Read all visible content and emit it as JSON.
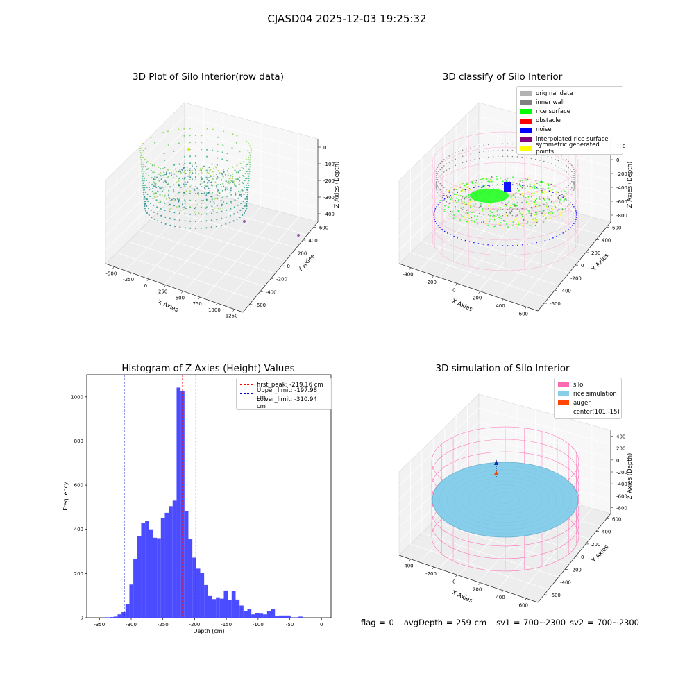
{
  "suptitle": "CJASD04 2025-12-03 19:25:32",
  "panels": {
    "raw": {
      "title": "3D Plot of Silo Interior(row data)",
      "x_label": "X Axies",
      "y_label": "Y Axies",
      "z_label": "Z Axies (Depth)",
      "x_ticks": [
        "-500",
        "-250",
        "0",
        "250",
        "500",
        "750",
        "1000",
        "1250"
      ],
      "y_ticks": [
        "600",
        "400",
        "200",
        "0",
        "-200",
        "-400",
        "-600"
      ],
      "z_ticks": [
        "0",
        "-100",
        "-200",
        "-300",
        "-400"
      ]
    },
    "classify": {
      "title": "3D classify of Silo Interior",
      "x_label": "X Axies",
      "y_label": "Y Axies",
      "z_label": "Z Axies (Depth)",
      "x_ticks": [
        "-400",
        "-200",
        "0",
        "200",
        "400",
        "600"
      ],
      "y_ticks": [
        "600",
        "400",
        "200",
        "0",
        "-200",
        "-400",
        "-600"
      ],
      "z_ticks": [
        "200",
        "0",
        "-200",
        "-400",
        "-600",
        "-800"
      ],
      "legend": [
        {
          "label": "original data",
          "color": "#b3b3b3"
        },
        {
          "label": "inner wall",
          "color": "#808080"
        },
        {
          "label": "rice surface",
          "color": "#00ff00"
        },
        {
          "label": "obstacle",
          "color": "#ff0000"
        },
        {
          "label": "noise",
          "color": "#0000ff"
        },
        {
          "label": "interpolated rice surface",
          "color": "#800080"
        },
        {
          "label": "symmetric generated points",
          "color": "#ffff00"
        }
      ]
    },
    "simulation": {
      "title": "3D simulation of Silo Interior",
      "x_label": "X Axies",
      "y_label": "Y Axies",
      "z_label": "Z Axies (Depth)",
      "x_ticks": [
        "-400",
        "-200",
        "0",
        "200",
        "400",
        "600"
      ],
      "y_ticks": [
        "600",
        "400",
        "200",
        "0",
        "-200",
        "-400",
        "-600"
      ],
      "z_ticks": [
        "400",
        "200",
        "0",
        "-200",
        "-400",
        "-600",
        "-800"
      ],
      "legend": [
        {
          "label": "silo",
          "color": "#ff69b4"
        },
        {
          "label": "rice simulation",
          "color": "#87ceeb"
        },
        {
          "label": "auger",
          "color": "#ff4500"
        },
        {
          "label": "center(101,-15)",
          "color": ""
        }
      ]
    }
  },
  "chart_data": {
    "type": "bar",
    "title": "Histogram of Z-Axies (Height) Values",
    "xlabel": "Depth (cm)",
    "ylabel": "Frequency",
    "xlim": [
      -370,
      15
    ],
    "ylim": [
      0,
      1100
    ],
    "x_ticks": [
      -350,
      -300,
      -250,
      -200,
      -150,
      -100,
      -50,
      0
    ],
    "y_ticks": [
      0,
      200,
      400,
      600,
      800,
      1000
    ],
    "bar_color": "#4b4bff",
    "bin_width": 6.2,
    "bin_start": -340,
    "values": [
      2,
      3,
      5,
      15,
      25,
      60,
      150,
      265,
      370,
      428,
      440,
      400,
      362,
      360,
      452,
      475,
      505,
      530,
      1042,
      1025,
      482,
      355,
      272,
      222,
      203,
      148,
      98,
      84,
      92,
      86,
      123,
      80,
      122,
      82,
      55,
      30,
      40,
      15,
      20,
      18,
      15,
      30,
      38,
      8,
      10,
      10,
      10,
      0,
      2,
      5
    ],
    "vlines": [
      {
        "label": "first_peak: -219.16 cm",
        "x": -219.16,
        "color": "#ff0000"
      },
      {
        "label": "Upper_limit: -197.98 cm",
        "x": -197.98,
        "color": "#0000cc"
      },
      {
        "label": "Lower_limit: -310.94 cm",
        "x": -310.94,
        "color": "#0000cc"
      }
    ]
  },
  "footer": {
    "flag": "flag = 0",
    "avg_depth": "avgDepth = 259 cm",
    "sv1": "sv1 = 700~2300",
    "sv2": "sv2 = 700~2300"
  }
}
